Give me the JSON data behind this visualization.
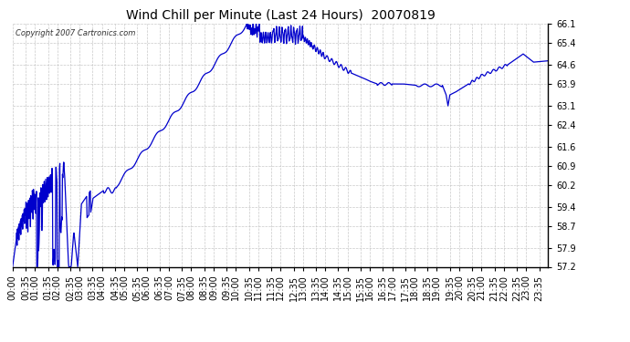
{
  "title": "Wind Chill per Minute (Last 24 Hours)  20070819",
  "copyright_text": "Copyright 2007 Cartronics.com",
  "line_color": "#0000CC",
  "bg_color": "#ffffff",
  "plot_bg_color": "#ffffff",
  "grid_color": "#bbbbbb",
  "yticks": [
    57.2,
    57.9,
    58.7,
    59.4,
    60.2,
    60.9,
    61.6,
    62.4,
    63.1,
    63.9,
    64.6,
    65.4,
    66.1
  ],
  "ymin": 57.2,
  "ymax": 66.1,
  "title_color": "#000000",
  "tick_label_color": "#000000",
  "tick_label_fontsize": 7.0
}
